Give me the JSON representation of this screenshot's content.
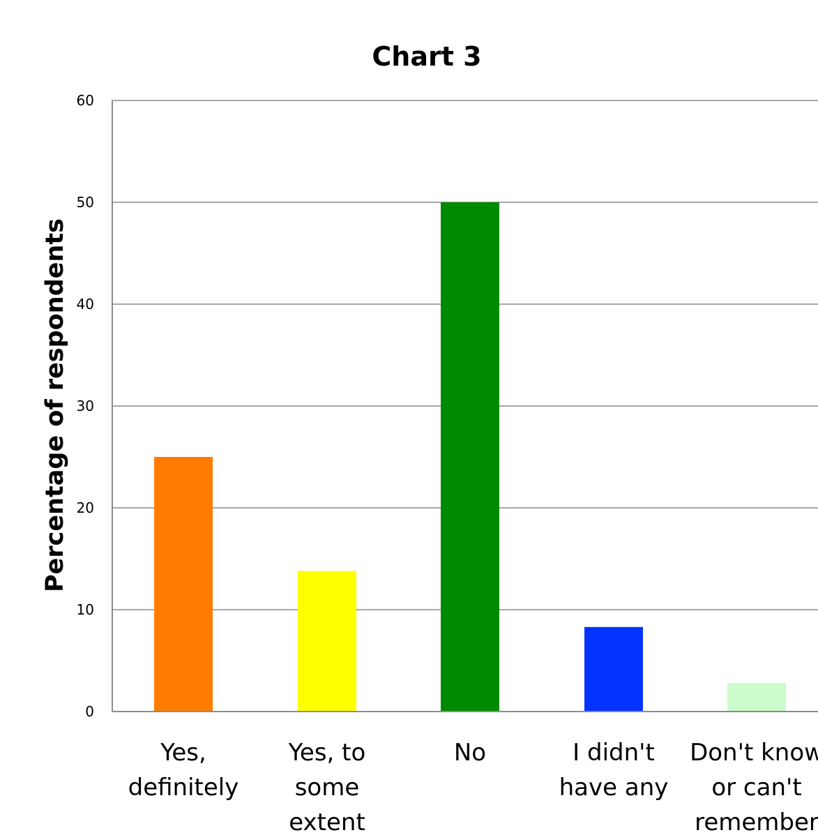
{
  "chart_data": {
    "type": "bar",
    "title": "Chart 3",
    "xlabel": "",
    "ylabel": "Percentage of respondents",
    "ylim": [
      0,
      60
    ],
    "yticks": [
      "0",
      "10",
      "20",
      "30",
      "40",
      "50",
      "60"
    ],
    "grid": true,
    "legend": "none",
    "categories": [
      [
        "Yes,",
        "definitely"
      ],
      [
        "Yes, to",
        "some",
        "extent"
      ],
      [
        "No"
      ],
      [
        "I didn't",
        "have any"
      ],
      [
        "Don't know",
        "or can't",
        "remember"
      ]
    ],
    "values": [
      25,
      13.8,
      50,
      8.3,
      2.8
    ],
    "colors": [
      "#ff7c00",
      "#ffff00",
      "#008a00",
      "#0433ff",
      "#ccfccc"
    ]
  }
}
